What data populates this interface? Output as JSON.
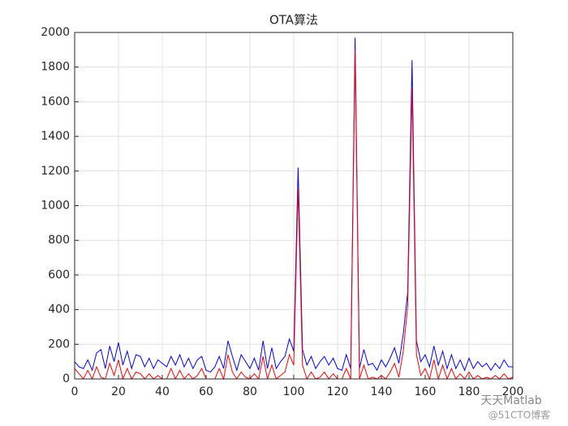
{
  "chart_data": {
    "type": "line",
    "title": "OTA算法",
    "x": [
      0,
      2,
      4,
      6,
      8,
      10,
      12,
      14,
      16,
      18,
      20,
      22,
      24,
      26,
      28,
      30,
      32,
      34,
      36,
      38,
      40,
      42,
      44,
      46,
      48,
      50,
      52,
      54,
      56,
      58,
      60,
      62,
      64,
      66,
      68,
      70,
      72,
      74,
      76,
      78,
      80,
      82,
      84,
      86,
      88,
      90,
      92,
      94,
      96,
      98,
      100,
      102,
      104,
      106,
      108,
      110,
      112,
      114,
      116,
      118,
      120,
      122,
      124,
      126,
      128,
      130,
      132,
      134,
      136,
      138,
      140,
      142,
      144,
      146,
      148,
      150,
      152,
      154,
      156,
      158,
      160,
      162,
      164,
      166,
      168,
      170,
      172,
      174,
      176,
      178,
      180,
      182,
      184,
      186,
      188,
      190,
      192,
      194,
      196,
      198,
      200
    ],
    "series": [
      {
        "color": "#0000ff",
        "values": [
          100,
          70,
          60,
          110,
          50,
          150,
          170,
          60,
          190,
          100,
          210,
          80,
          160,
          60,
          140,
          130,
          70,
          120,
          60,
          110,
          90,
          70,
          130,
          80,
          140,
          70,
          120,
          60,
          110,
          130,
          50,
          40,
          70,
          130,
          60,
          220,
          130,
          50,
          140,
          100,
          60,
          120,
          50,
          220,
          60,
          180,
          60,
          100,
          130,
          230,
          160,
          1220,
          170,
          80,
          130,
          60,
          100,
          130,
          80,
          120,
          60,
          50,
          140,
          60,
          1970,
          60,
          170,
          80,
          90,
          50,
          110,
          70,
          120,
          180,
          90,
          260,
          500,
          1840,
          220,
          100,
          140,
          70,
          190,
          80,
          160,
          60,
          140,
          60,
          110,
          50,
          120,
          60,
          100,
          70,
          90,
          50,
          90,
          60,
          110,
          70,
          70
        ]
      },
      {
        "color": "#ff0000",
        "values": [
          60,
          30,
          0,
          50,
          0,
          70,
          10,
          0,
          90,
          20,
          110,
          0,
          60,
          0,
          40,
          30,
          0,
          30,
          0,
          20,
          0,
          0,
          60,
          0,
          50,
          0,
          30,
          0,
          20,
          60,
          0,
          0,
          0,
          60,
          0,
          140,
          40,
          0,
          40,
          10,
          0,
          30,
          0,
          130,
          0,
          80,
          0,
          20,
          40,
          140,
          80,
          1100,
          80,
          0,
          40,
          0,
          10,
          40,
          0,
          30,
          0,
          0,
          60,
          0,
          1900,
          0,
          80,
          0,
          10,
          0,
          20,
          0,
          40,
          90,
          10,
          160,
          420,
          1680,
          140,
          20,
          60,
          0,
          110,
          0,
          80,
          0,
          60,
          0,
          30,
          0,
          40,
          0,
          20,
          0,
          10,
          0,
          20,
          0,
          30,
          0,
          10
        ]
      }
    ],
    "xlim": [
      0,
      200
    ],
    "xticks": [
      0,
      20,
      40,
      60,
      80,
      100,
      120,
      140,
      160,
      180,
      200
    ],
    "ylim": [
      0,
      2000
    ],
    "yticks": [
      0,
      200,
      400,
      600,
      800,
      1000,
      1200,
      1400,
      1600,
      1800,
      2000
    ],
    "grid": true
  },
  "watermark": [
    "天天Matlab",
    "@51CTO博客"
  ]
}
